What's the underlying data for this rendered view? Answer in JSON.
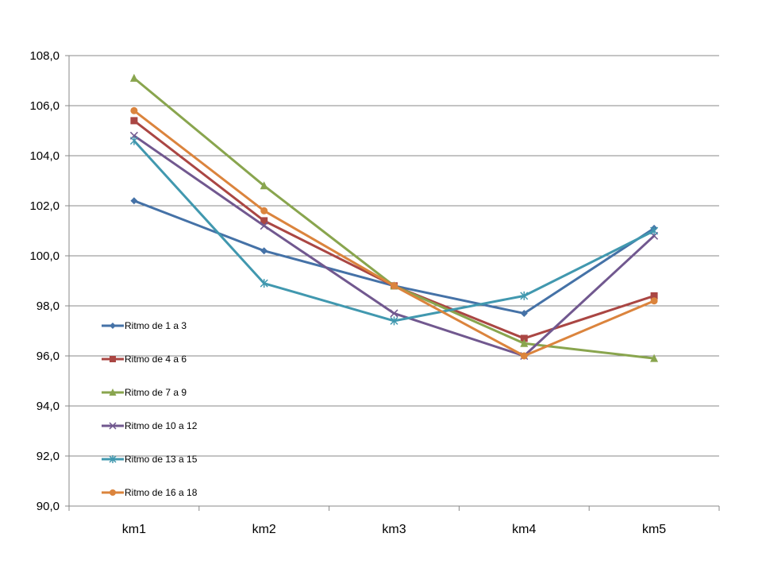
{
  "chart_data": {
    "type": "line",
    "categories": [
      "km1",
      "km2",
      "km3",
      "km4",
      "km5"
    ],
    "ylim": [
      90,
      108
    ],
    "yticks": [
      90,
      92,
      94,
      96,
      98,
      100,
      102,
      104,
      106,
      108
    ],
    "ytick_labels": [
      "90,0",
      "92,0",
      "94,0",
      "96,0",
      "98,0",
      "100,0",
      "102,0",
      "104,0",
      "106,0",
      "108,0"
    ],
    "grid": true,
    "legend_position": "left",
    "series": [
      {
        "name": "Ritmo de 1 a 3",
        "color": "#4572A7",
        "marker": "diamond",
        "values": [
          102.2,
          100.2,
          98.8,
          97.7,
          101.1
        ]
      },
      {
        "name": "Ritmo de 4 a 6",
        "color": "#AA4643",
        "marker": "square",
        "values": [
          105.4,
          101.4,
          98.8,
          96.7,
          98.4
        ]
      },
      {
        "name": "Ritmo de 7 a 9",
        "color": "#89A54E",
        "marker": "triangle",
        "values": [
          107.1,
          102.8,
          98.8,
          96.5,
          95.9
        ]
      },
      {
        "name": "Ritmo de 10 a 12",
        "color": "#71588F",
        "marker": "x",
        "values": [
          104.8,
          101.2,
          97.7,
          96.0,
          100.8
        ]
      },
      {
        "name": "Ritmo de 13 a 15",
        "color": "#4198AF",
        "marker": "star",
        "values": [
          104.6,
          98.9,
          97.4,
          98.4,
          101.0
        ]
      },
      {
        "name": "Ritmo de 16 a 18",
        "color": "#DB843D",
        "marker": "circle",
        "values": [
          105.8,
          101.8,
          98.8,
          96.0,
          98.2
        ]
      }
    ]
  }
}
